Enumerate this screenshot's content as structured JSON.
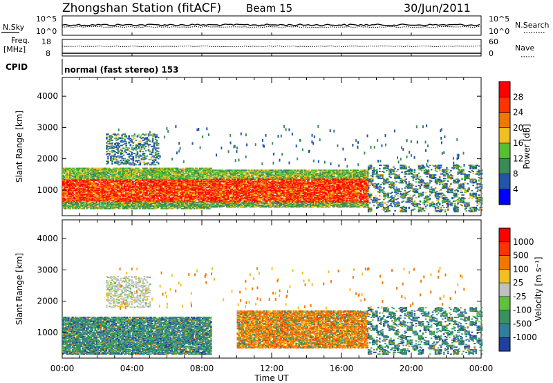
{
  "header": {
    "station": "Zhongshan Station (fitACF)",
    "beam": "Beam 15",
    "date": "30/Jun/2011"
  },
  "params_panel": {
    "nsky_label": "N.Sky",
    "nsearch_label": "N.Search",
    "nsky_ticks": [
      "10^5",
      "10^0"
    ],
    "nsearch_ticks": [
      "10^5",
      "10^0"
    ],
    "freq_label_top": "Freq.",
    "freq_label_bottom": "[MHz]",
    "freq_ticks": [
      "18",
      "8"
    ],
    "nave_label": "Nave",
    "nave_ticks": [
      "60",
      "0"
    ],
    "cpid_label": "CPID",
    "cpid_text": "normal (fast stereo) 153"
  },
  "time_axis": {
    "xlabel": "Time UT",
    "ticks": [
      "00:00",
      "04:00",
      "08:00",
      "12:00",
      "16:00",
      "20:00",
      "00:00"
    ]
  },
  "chart_data": [
    {
      "type": "heatmap",
      "name": "power",
      "xlabel": "Time UT",
      "ylabel": "Slant Range [km]",
      "xlim": [
        0,
        24
      ],
      "ylim": [
        180,
        4600
      ],
      "yticks": [
        "1000",
        "2000",
        "3000",
        "4000"
      ],
      "colorbar": {
        "label": "Power [dB]",
        "ticks": [
          "28",
          "24",
          "20",
          "16",
          "12",
          "8",
          "4"
        ],
        "colors": [
          "#0000ff",
          "#2255a8",
          "#3a8a5a",
          "#55c030",
          "#f0c020",
          "#f07800",
          "#ff3300",
          "#ff0000"
        ]
      },
      "regions": [
        {
          "t0": 0.0,
          "t1": 8.5,
          "r0": 400,
          "r1": 1700,
          "level": "high"
        },
        {
          "t0": 8.5,
          "t1": 17.5,
          "r0": 450,
          "r1": 1650,
          "level": "high"
        },
        {
          "t0": 2.5,
          "t1": 5.5,
          "r0": 1800,
          "r1": 2800,
          "level": "low"
        },
        {
          "t0": 17.5,
          "t1": 24.0,
          "r0": 300,
          "r1": 1800,
          "level": "mixed"
        }
      ]
    },
    {
      "type": "heatmap",
      "name": "velocity",
      "xlabel": "Time UT",
      "ylabel": "Slant Range [km]",
      "xlim": [
        0,
        24
      ],
      "ylim": [
        180,
        4600
      ],
      "yticks": [
        "1000",
        "2000",
        "3000",
        "4000"
      ],
      "colorbar": {
        "label": "Velocity [m s⁻¹]",
        "ticks": [
          "1000",
          "500",
          "100",
          "25",
          "-25",
          "-100",
          "-500",
          "-1000"
        ],
        "colors": [
          "#2040a0",
          "#2f7f9f",
          "#3a9060",
          "#60c040",
          "#c0c0c0",
          "#f0c020",
          "#f07800",
          "#ff3300",
          "#ff0000"
        ]
      },
      "regions": [
        {
          "t0": 0.0,
          "t1": 8.5,
          "r0": 300,
          "r1": 1500,
          "level": "green-blue"
        },
        {
          "t0": 10.0,
          "t1": 17.5,
          "r0": 500,
          "r1": 1700,
          "level": "orange"
        },
        {
          "t0": 2.5,
          "t1": 5.0,
          "r0": 1800,
          "r1": 2800,
          "level": "grey"
        },
        {
          "t0": 17.5,
          "t1": 24.0,
          "r0": 300,
          "r1": 1800,
          "level": "green-blue"
        }
      ]
    }
  ]
}
